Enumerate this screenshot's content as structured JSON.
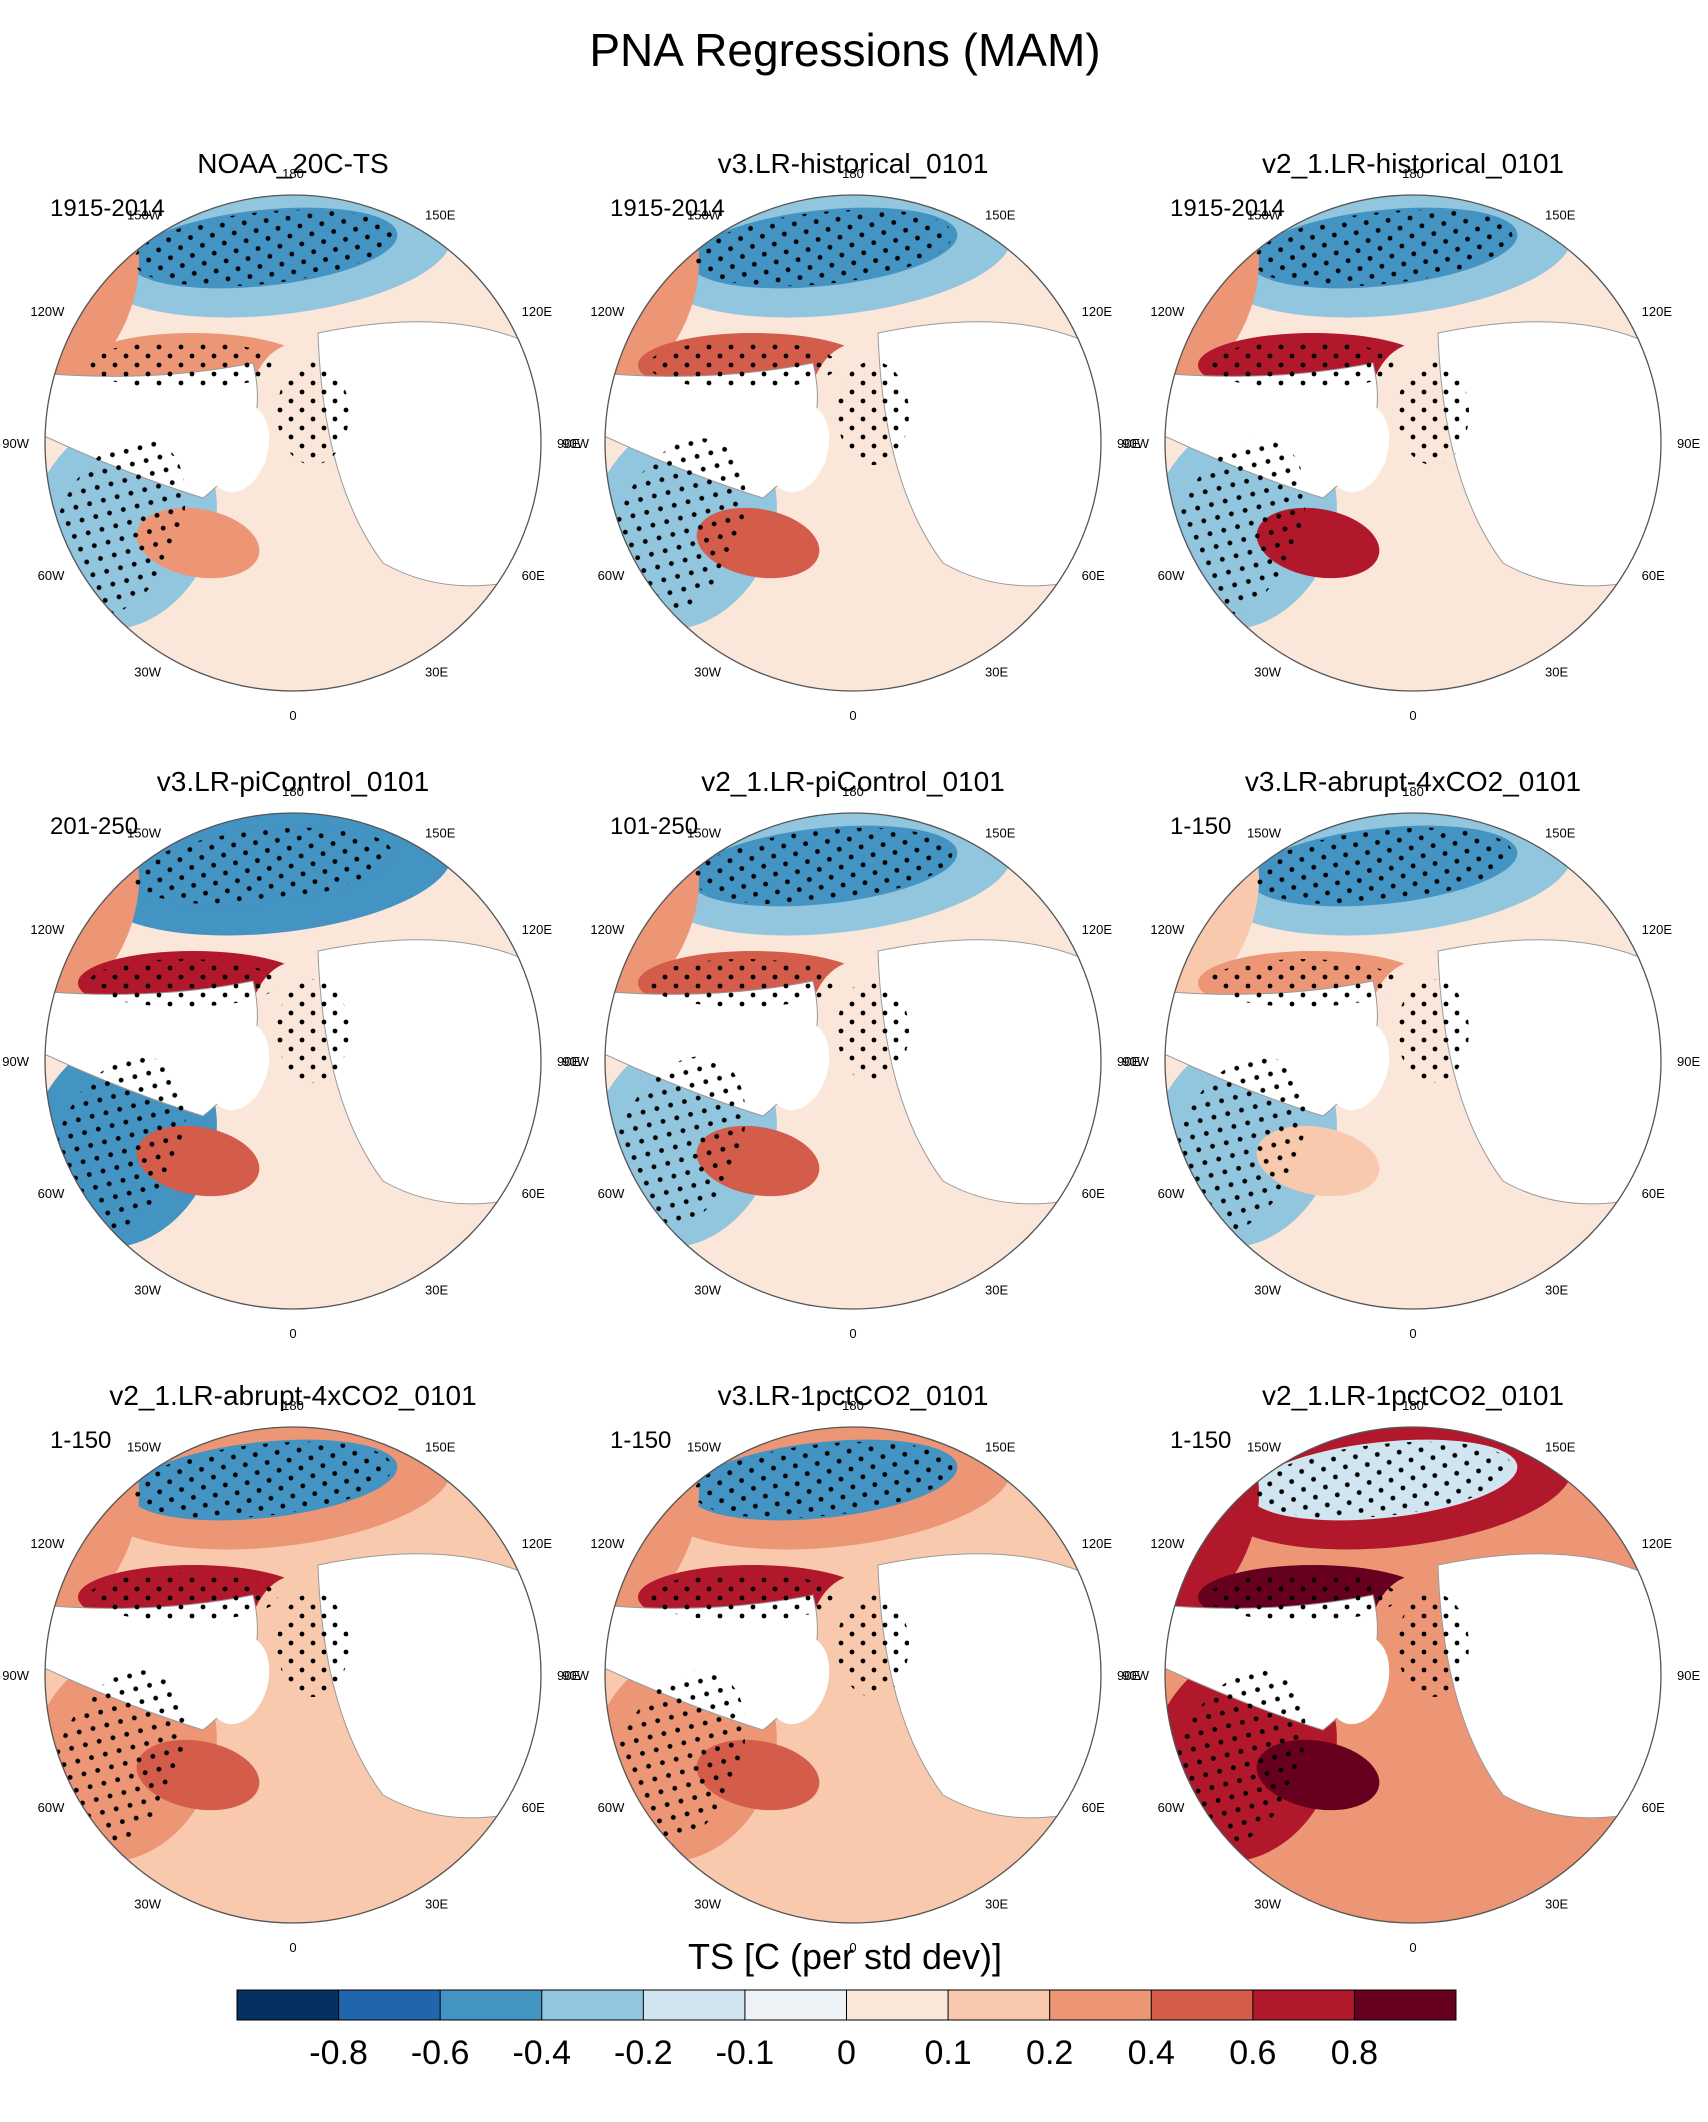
{
  "figure": {
    "title": "PNA Regressions (MAM)",
    "colorbar_label": "TS [C (per std dev)]"
  },
  "chart_data": {
    "type": "polar-stereographic contour map panels",
    "variable": "TS",
    "units": "C (per std dev)",
    "projection": "Northern Hemisphere polar stereographic, 0 longitude at bottom",
    "longitude_labels": [
      "180",
      "150E",
      "120E",
      "90E",
      "60E",
      "30E",
      "0",
      "30W",
      "60W",
      "90W",
      "120W",
      "150W"
    ],
    "stippling": "significant regions marked with dots",
    "colorbar": {
      "levels": [
        -0.8,
        -0.6,
        -0.4,
        -0.2,
        -0.1,
        0,
        0.1,
        0.2,
        0.4,
        0.6,
        0.8
      ],
      "level_labels": [
        "-0.8",
        "-0.6",
        "-0.4",
        "-0.2",
        "-0.1",
        "0",
        "0.1",
        "0.2",
        "0.4",
        "0.6",
        "0.8"
      ],
      "colors": [
        "#053061",
        "#2166ac",
        "#4393c3",
        "#92c5de",
        "#d1e5f0",
        "#eef3f7",
        "#fbe6da",
        "#f9c9ae",
        "#ec9676",
        "#d35c4a",
        "#b2182b",
        "#67001f"
      ]
    },
    "panels": [
      {
        "title": "NOAA_20C-TS",
        "years": "1915-2014"
      },
      {
        "title": "v3.LR-historical_0101",
        "years": "1915-2014"
      },
      {
        "title": "v2_1.LR-historical_0101",
        "years": "1915-2014"
      },
      {
        "title": "v3.LR-piControl_0101",
        "years": "201-250"
      },
      {
        "title": "v2_1.LR-piControl_0101",
        "years": "101-250"
      },
      {
        "title": "v3.LR-abrupt-4xCO2_0101",
        "years": "1-150"
      },
      {
        "title": "v2_1.LR-abrupt-4xCO2_0101",
        "years": "1-150"
      },
      {
        "title": "v3.LR-1pctCO2_0101",
        "years": "1-150"
      },
      {
        "title": "v2_1.LR-1pctCO2_0101",
        "years": "1-150"
      }
    ]
  }
}
